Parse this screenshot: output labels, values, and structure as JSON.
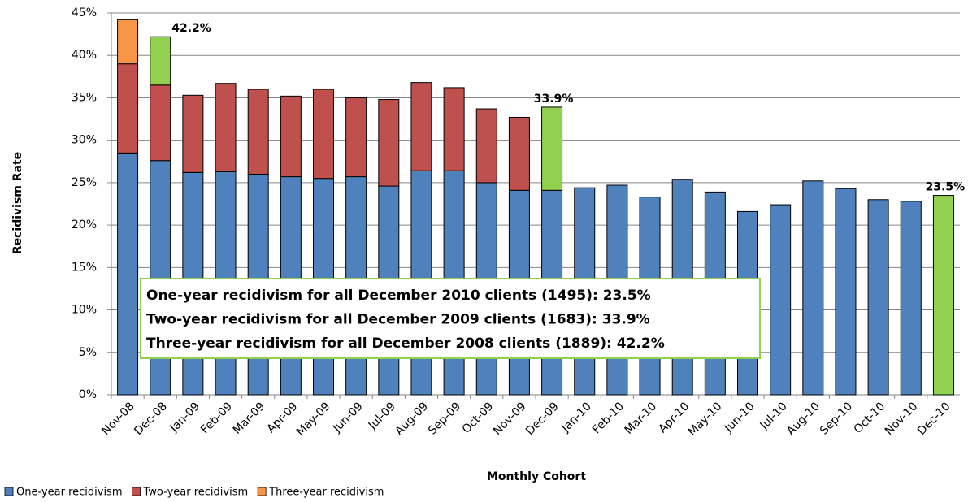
{
  "chart_data": {
    "type": "stacked_bar",
    "y_axis_title": "Recidivism Rate",
    "x_axis_title": "Monthly Cohort",
    "categories": [
      "Nov-08",
      "Dec-08",
      "Jan-09",
      "Feb-09",
      "Mar-09",
      "Apr-09",
      "May-09",
      "Jun-09",
      "Jul-09",
      "Aug-09",
      "Sep-09",
      "Oct-09",
      "Nov-09",
      "Dec-09",
      "Jan-10",
      "Feb-10",
      "Mar-10",
      "Apr-10",
      "May-10",
      "Jun-10",
      "Jul-10",
      "Aug-10",
      "Sep-10",
      "Oct-10",
      "Nov-10",
      "Dec-10"
    ],
    "series": [
      {
        "name": "One-year recidivism",
        "color": "#4f81bd",
        "values": [
          28.5,
          27.6,
          26.2,
          26.3,
          26.0,
          25.7,
          25.5,
          25.7,
          24.6,
          26.4,
          26.4,
          25.0,
          24.1,
          24.1,
          24.4,
          24.7,
          23.3,
          25.4,
          23.9,
          21.6,
          22.4,
          25.2,
          24.3,
          23.0,
          22.8,
          23.5
        ],
        "colors": [
          "#4f81bd",
          "#4f81bd",
          "#4f81bd",
          "#4f81bd",
          "#4f81bd",
          "#4f81bd",
          "#4f81bd",
          "#4f81bd",
          "#4f81bd",
          "#4f81bd",
          "#4f81bd",
          "#4f81bd",
          "#4f81bd",
          "#4f81bd",
          "#4f81bd",
          "#4f81bd",
          "#4f81bd",
          "#4f81bd",
          "#4f81bd",
          "#4f81bd",
          "#4f81bd",
          "#4f81bd",
          "#4f81bd",
          "#4f81bd",
          "#4f81bd",
          "#92d050"
        ]
      },
      {
        "name": "Two-year recidivism",
        "color": "#c0504d",
        "values": [
          10.5,
          8.9,
          9.1,
          10.4,
          10.0,
          9.5,
          10.5,
          9.3,
          10.2,
          10.4,
          9.8,
          8.7,
          8.6,
          9.8,
          null,
          null,
          null,
          null,
          null,
          null,
          null,
          null,
          null,
          null,
          null,
          null
        ],
        "colors": [
          "#c0504d",
          "#c0504d",
          "#c0504d",
          "#c0504d",
          "#c0504d",
          "#c0504d",
          "#c0504d",
          "#c0504d",
          "#c0504d",
          "#c0504d",
          "#c0504d",
          "#c0504d",
          "#c0504d",
          "#92d050",
          "#c0504d",
          "#c0504d",
          "#c0504d",
          "#c0504d",
          "#c0504d",
          "#c0504d",
          "#c0504d",
          "#c0504d",
          "#c0504d",
          "#c0504d",
          "#c0504d",
          "#c0504d"
        ]
      },
      {
        "name": "Three-year recidivism",
        "color": "#f79646",
        "values": [
          5.2,
          5.7,
          null,
          null,
          null,
          null,
          null,
          null,
          null,
          null,
          null,
          null,
          null,
          null,
          null,
          null,
          null,
          null,
          null,
          null,
          null,
          null,
          null,
          null,
          null,
          null
        ],
        "colors": [
          "#f79646",
          "#92d050",
          "#f79646",
          "#f79646",
          "#f79646",
          "#f79646",
          "#f79646",
          "#f79646",
          "#f79646",
          "#f79646",
          "#f79646",
          "#f79646",
          "#f79646",
          "#f79646",
          "#f79646",
          "#f79646",
          "#f79646",
          "#f79646",
          "#f79646",
          "#f79646",
          "#f79646",
          "#f79646",
          "#f79646",
          "#f79646",
          "#f79646",
          "#f79646"
        ]
      }
    ],
    "annotations": [
      {
        "category": "Dec-08",
        "value": 42.2,
        "label": "42.2%"
      },
      {
        "category": "Dec-09",
        "value": 33.9,
        "label": "33.9%"
      },
      {
        "category": "Dec-10",
        "value": 23.5,
        "label": "23.5%"
      }
    ],
    "text_box": [
      "One-year recidivism for all December 2010 clients (1495): 23.5%",
      "Two-year recidivism for all December 2009 clients (1683): 33.9%",
      "Three-year recidivism for all December 2008 clients (1889): 42.2%"
    ],
    "text_box_border": "#92d050",
    "ylim": [
      0,
      45
    ],
    "yticks": [
      {
        "value": 0,
        "label": "0%"
      },
      {
        "value": 5,
        "label": "5%"
      },
      {
        "value": 10,
        "label": "10%"
      },
      {
        "value": 15,
        "label": "15%"
      },
      {
        "value": 20,
        "label": "20%"
      },
      {
        "value": 25,
        "label": "25%"
      },
      {
        "value": 30,
        "label": "30%"
      },
      {
        "value": 35,
        "label": "35%"
      },
      {
        "value": 40,
        "label": "40%"
      },
      {
        "value": 45,
        "label": "45%"
      }
    ],
    "grid": true,
    "legend": "bottom-left"
  }
}
